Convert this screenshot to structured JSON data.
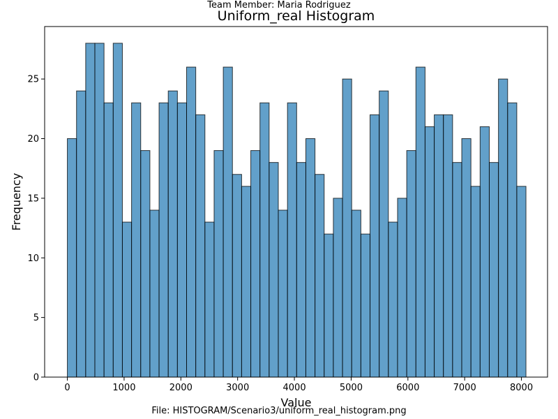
{
  "header": {
    "suptitle": "Team Member: Maria Rodriguez"
  },
  "footer": {
    "caption": "File: HISTOGRAM/Scenario3/uniform_real_histogram.png"
  },
  "chart_data": {
    "type": "bar",
    "title": "Uniform_real Histogram",
    "xlabel": "Value",
    "ylabel": "Frequency",
    "xlim": [
      -400,
      8460
    ],
    "ylim": [
      0,
      29.4
    ],
    "bin_start": 0,
    "bin_end": 8080,
    "xticks": [
      0,
      1000,
      2000,
      3000,
      4000,
      5000,
      6000,
      7000,
      8000
    ],
    "yticks": [
      0,
      5,
      10,
      15,
      20,
      25
    ],
    "bar_color": "#1f77b4",
    "bar_opacity": 0.7,
    "edge_color": "#000000",
    "grid": false,
    "values": [
      20,
      24,
      28,
      28,
      23,
      28,
      13,
      23,
      19,
      14,
      23,
      24,
      23,
      26,
      22,
      13,
      19,
      26,
      17,
      16,
      19,
      23,
      18,
      14,
      23,
      18,
      20,
      17,
      12,
      15,
      25,
      14,
      12,
      22,
      24,
      13,
      15,
      19,
      26,
      21,
      22,
      22,
      18,
      20,
      16,
      21,
      18,
      25,
      23,
      16
    ]
  }
}
